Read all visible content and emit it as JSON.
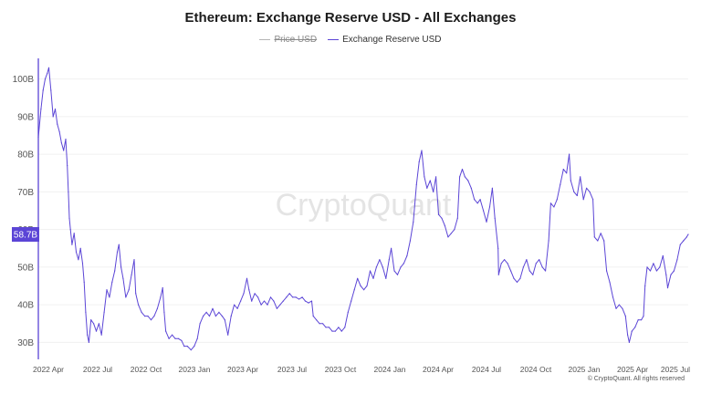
{
  "title": "Ethereum: Exchange Reserve USD - All Exchanges",
  "legend": [
    {
      "label": "Price USD",
      "enabled": false,
      "color": "#b5b5b5"
    },
    {
      "label": "Exchange Reserve USD",
      "enabled": true,
      "color": "#5b45d6"
    }
  ],
  "watermark": "CryptoQuant",
  "footer": "© CryptoQuant. All rights reserved",
  "colors": {
    "series": "#5b45d6",
    "axis": "#5b45d6",
    "grid": "#f0f0f0",
    "tick_text": "#555555"
  },
  "chart_data": {
    "type": "line",
    "title": "Ethereum: Exchange Reserve USD - All Exchanges",
    "xlabel": "",
    "ylabel": "",
    "x_tick_labels": [
      "2022 Apr",
      "2022 Jul",
      "2022 Oct",
      "2023 Jan",
      "2023 Apr",
      "2023 Jul",
      "2023 Oct",
      "2024 Jan",
      "2024 Apr",
      "2024 Jul",
      "2024 Oct",
      "2025 Jan",
      "2025 Apr",
      "2025 Jul"
    ],
    "y_ticks": [
      30,
      40,
      50,
      60,
      70,
      80,
      90,
      100
    ],
    "y_tick_labels": [
      "30B",
      "40B",
      "50B",
      "60B",
      "70B",
      "80B",
      "90B",
      "100B"
    ],
    "ylim": [
      25.5,
      105
    ],
    "xlim": [
      "2022-03-15",
      "2025-07-31"
    ],
    "last_value_label": "58.7B",
    "last_value": 58.7,
    "grid": true,
    "series": [
      {
        "name": "Exchange Reserve USD",
        "unit": "B",
        "points": [
          [
            "2022-03-15",
            84.5
          ],
          [
            "2022-03-20",
            92
          ],
          [
            "2022-03-24",
            97
          ],
          [
            "2022-03-28",
            100
          ],
          [
            "2022-04-01",
            101.5
          ],
          [
            "2022-04-04",
            103
          ],
          [
            "2022-04-08",
            97
          ],
          [
            "2022-04-12",
            90
          ],
          [
            "2022-04-16",
            92
          ],
          [
            "2022-04-20",
            88
          ],
          [
            "2022-04-24",
            86
          ],
          [
            "2022-04-28",
            83
          ],
          [
            "2022-05-02",
            81
          ],
          [
            "2022-05-06",
            84
          ],
          [
            "2022-05-09",
            77
          ],
          [
            "2022-05-11",
            70
          ],
          [
            "2022-05-13",
            63
          ],
          [
            "2022-05-15",
            60
          ],
          [
            "2022-05-18",
            56
          ],
          [
            "2022-05-22",
            59
          ],
          [
            "2022-05-26",
            54
          ],
          [
            "2022-05-30",
            52
          ],
          [
            "2022-06-03",
            55
          ],
          [
            "2022-06-07",
            51
          ],
          [
            "2022-06-10",
            46
          ],
          [
            "2022-06-13",
            38
          ],
          [
            "2022-06-16",
            32
          ],
          [
            "2022-06-19",
            30
          ],
          [
            "2022-06-23",
            36
          ],
          [
            "2022-06-28",
            35
          ],
          [
            "2022-07-03",
            33
          ],
          [
            "2022-07-08",
            35
          ],
          [
            "2022-07-13",
            32
          ],
          [
            "2022-07-18",
            38
          ],
          [
            "2022-07-23",
            44
          ],
          [
            "2022-07-28",
            42
          ],
          [
            "2022-08-02",
            46
          ],
          [
            "2022-08-07",
            49
          ],
          [
            "2022-08-12",
            54
          ],
          [
            "2022-08-15",
            56
          ],
          [
            "2022-08-19",
            50
          ],
          [
            "2022-08-23",
            47
          ],
          [
            "2022-08-28",
            42
          ],
          [
            "2022-09-03",
            44
          ],
          [
            "2022-09-08",
            48
          ],
          [
            "2022-09-13",
            52
          ],
          [
            "2022-09-16",
            43
          ],
          [
            "2022-09-21",
            40
          ],
          [
            "2022-09-27",
            38
          ],
          [
            "2022-10-03",
            37
          ],
          [
            "2022-10-09",
            37
          ],
          [
            "2022-10-15",
            36
          ],
          [
            "2022-10-21",
            37
          ],
          [
            "2022-10-27",
            39
          ],
          [
            "2022-11-02",
            42
          ],
          [
            "2022-11-06",
            44.5
          ],
          [
            "2022-11-09",
            38
          ],
          [
            "2022-11-12",
            33
          ],
          [
            "2022-11-18",
            31
          ],
          [
            "2022-11-24",
            32
          ],
          [
            "2022-11-30",
            31
          ],
          [
            "2022-12-06",
            31
          ],
          [
            "2022-12-12",
            30.5
          ],
          [
            "2022-12-17",
            29
          ],
          [
            "2022-12-23",
            29
          ],
          [
            "2022-12-30",
            28
          ],
          [
            "2023-01-05",
            29
          ],
          [
            "2023-01-11",
            31
          ],
          [
            "2023-01-16",
            35
          ],
          [
            "2023-01-22",
            37
          ],
          [
            "2023-01-28",
            38
          ],
          [
            "2023-02-03",
            37
          ],
          [
            "2023-02-09",
            39
          ],
          [
            "2023-02-15",
            37
          ],
          [
            "2023-02-21",
            38
          ],
          [
            "2023-02-27",
            37
          ],
          [
            "2023-03-04",
            36
          ],
          [
            "2023-03-10",
            32
          ],
          [
            "2023-03-16",
            37
          ],
          [
            "2023-03-22",
            40
          ],
          [
            "2023-03-28",
            39
          ],
          [
            "2023-04-03",
            41
          ],
          [
            "2023-04-09",
            43
          ],
          [
            "2023-04-15",
            47
          ],
          [
            "2023-04-19",
            44
          ],
          [
            "2023-04-24",
            41
          ],
          [
            "2023-04-30",
            43
          ],
          [
            "2023-05-06",
            42
          ],
          [
            "2023-05-12",
            40
          ],
          [
            "2023-05-18",
            41
          ],
          [
            "2023-05-24",
            40
          ],
          [
            "2023-05-30",
            42
          ],
          [
            "2023-06-05",
            41
          ],
          [
            "2023-06-11",
            39
          ],
          [
            "2023-06-17",
            40
          ],
          [
            "2023-06-23",
            41
          ],
          [
            "2023-06-29",
            42
          ],
          [
            "2023-07-05",
            43
          ],
          [
            "2023-07-11",
            42
          ],
          [
            "2023-07-17",
            42
          ],
          [
            "2023-07-23",
            41.5
          ],
          [
            "2023-07-29",
            42
          ],
          [
            "2023-08-04",
            41
          ],
          [
            "2023-08-10",
            40.5
          ],
          [
            "2023-08-16",
            41
          ],
          [
            "2023-08-19",
            37
          ],
          [
            "2023-08-25",
            36
          ],
          [
            "2023-08-31",
            35
          ],
          [
            "2023-09-06",
            35
          ],
          [
            "2023-09-12",
            34
          ],
          [
            "2023-09-18",
            34
          ],
          [
            "2023-09-24",
            33
          ],
          [
            "2023-09-30",
            33
          ],
          [
            "2023-10-06",
            34
          ],
          [
            "2023-10-12",
            33
          ],
          [
            "2023-10-18",
            34
          ],
          [
            "2023-10-24",
            38
          ],
          [
            "2023-10-30",
            41
          ],
          [
            "2023-11-05",
            44
          ],
          [
            "2023-11-11",
            47
          ],
          [
            "2023-11-17",
            45
          ],
          [
            "2023-11-23",
            44
          ],
          [
            "2023-11-29",
            45
          ],
          [
            "2023-12-05",
            49
          ],
          [
            "2023-12-11",
            47
          ],
          [
            "2023-12-17",
            50
          ],
          [
            "2023-12-23",
            52
          ],
          [
            "2023-12-29",
            50
          ],
          [
            "2024-01-04",
            47
          ],
          [
            "2024-01-10",
            52
          ],
          [
            "2024-01-14",
            55
          ],
          [
            "2024-01-20",
            49
          ],
          [
            "2024-01-26",
            48
          ],
          [
            "2024-02-01",
            50
          ],
          [
            "2024-02-07",
            51
          ],
          [
            "2024-02-13",
            53
          ],
          [
            "2024-02-19",
            57
          ],
          [
            "2024-02-25",
            62
          ],
          [
            "2024-03-02",
            72
          ],
          [
            "2024-03-07",
            78
          ],
          [
            "2024-03-12",
            81
          ],
          [
            "2024-03-17",
            74
          ],
          [
            "2024-03-22",
            71
          ],
          [
            "2024-03-28",
            73
          ],
          [
            "2024-04-03",
            70
          ],
          [
            "2024-04-08",
            74
          ],
          [
            "2024-04-13",
            64
          ],
          [
            "2024-04-19",
            63
          ],
          [
            "2024-04-25",
            61
          ],
          [
            "2024-05-01",
            58
          ],
          [
            "2024-05-07",
            59
          ],
          [
            "2024-05-13",
            60
          ],
          [
            "2024-05-19",
            63
          ],
          [
            "2024-05-23",
            74
          ],
          [
            "2024-05-28",
            76
          ],
          [
            "2024-06-02",
            74
          ],
          [
            "2024-06-08",
            73
          ],
          [
            "2024-06-14",
            71
          ],
          [
            "2024-06-20",
            68
          ],
          [
            "2024-06-26",
            67
          ],
          [
            "2024-07-01",
            68
          ],
          [
            "2024-07-07",
            65
          ],
          [
            "2024-07-13",
            62
          ],
          [
            "2024-07-19",
            66
          ],
          [
            "2024-07-24",
            71
          ],
          [
            "2024-07-29",
            63
          ],
          [
            "2024-08-04",
            55
          ],
          [
            "2024-08-05",
            48
          ],
          [
            "2024-08-10",
            51
          ],
          [
            "2024-08-16",
            52
          ],
          [
            "2024-08-22",
            51
          ],
          [
            "2024-08-28",
            49
          ],
          [
            "2024-09-03",
            47
          ],
          [
            "2024-09-09",
            46
          ],
          [
            "2024-09-15",
            47
          ],
          [
            "2024-09-21",
            50
          ],
          [
            "2024-09-27",
            52
          ],
          [
            "2024-10-03",
            49
          ],
          [
            "2024-10-09",
            48
          ],
          [
            "2024-10-15",
            51
          ],
          [
            "2024-10-21",
            52
          ],
          [
            "2024-10-27",
            50
          ],
          [
            "2024-11-02",
            49
          ],
          [
            "2024-11-08",
            57
          ],
          [
            "2024-11-12",
            67
          ],
          [
            "2024-11-18",
            66
          ],
          [
            "2024-11-24",
            68
          ],
          [
            "2024-11-30",
            72
          ],
          [
            "2024-12-06",
            76
          ],
          [
            "2024-12-12",
            75
          ],
          [
            "2024-12-17",
            80
          ],
          [
            "2024-12-20",
            73
          ],
          [
            "2024-12-26",
            70
          ],
          [
            "2025-01-01",
            69
          ],
          [
            "2025-01-07",
            74
          ],
          [
            "2025-01-13",
            68
          ],
          [
            "2025-01-19",
            71
          ],
          [
            "2025-01-25",
            70
          ],
          [
            "2025-01-31",
            68
          ],
          [
            "2025-02-03",
            58
          ],
          [
            "2025-02-09",
            57
          ],
          [
            "2025-02-15",
            59
          ],
          [
            "2025-02-21",
            57
          ],
          [
            "2025-02-26",
            49
          ],
          [
            "2025-03-04",
            46
          ],
          [
            "2025-03-10",
            42
          ],
          [
            "2025-03-16",
            39
          ],
          [
            "2025-03-22",
            40
          ],
          [
            "2025-03-28",
            39
          ],
          [
            "2025-04-03",
            37
          ],
          [
            "2025-04-07",
            32
          ],
          [
            "2025-04-10",
            30
          ],
          [
            "2025-04-15",
            33
          ],
          [
            "2025-04-21",
            34
          ],
          [
            "2025-04-27",
            36
          ],
          [
            "2025-05-03",
            36
          ],
          [
            "2025-05-07",
            37
          ],
          [
            "2025-05-10",
            45
          ],
          [
            "2025-05-14",
            50
          ],
          [
            "2025-05-20",
            49
          ],
          [
            "2025-05-26",
            51
          ],
          [
            "2025-06-01",
            49
          ],
          [
            "2025-06-07",
            50
          ],
          [
            "2025-06-13",
            53
          ],
          [
            "2025-06-19",
            48
          ],
          [
            "2025-06-22",
            44.5
          ],
          [
            "2025-06-28",
            48
          ],
          [
            "2025-07-04",
            49
          ],
          [
            "2025-07-10",
            52
          ],
          [
            "2025-07-16",
            56
          ],
          [
            "2025-07-22",
            57
          ],
          [
            "2025-07-28",
            58
          ],
          [
            "2025-07-31",
            58.7
          ]
        ]
      }
    ]
  }
}
